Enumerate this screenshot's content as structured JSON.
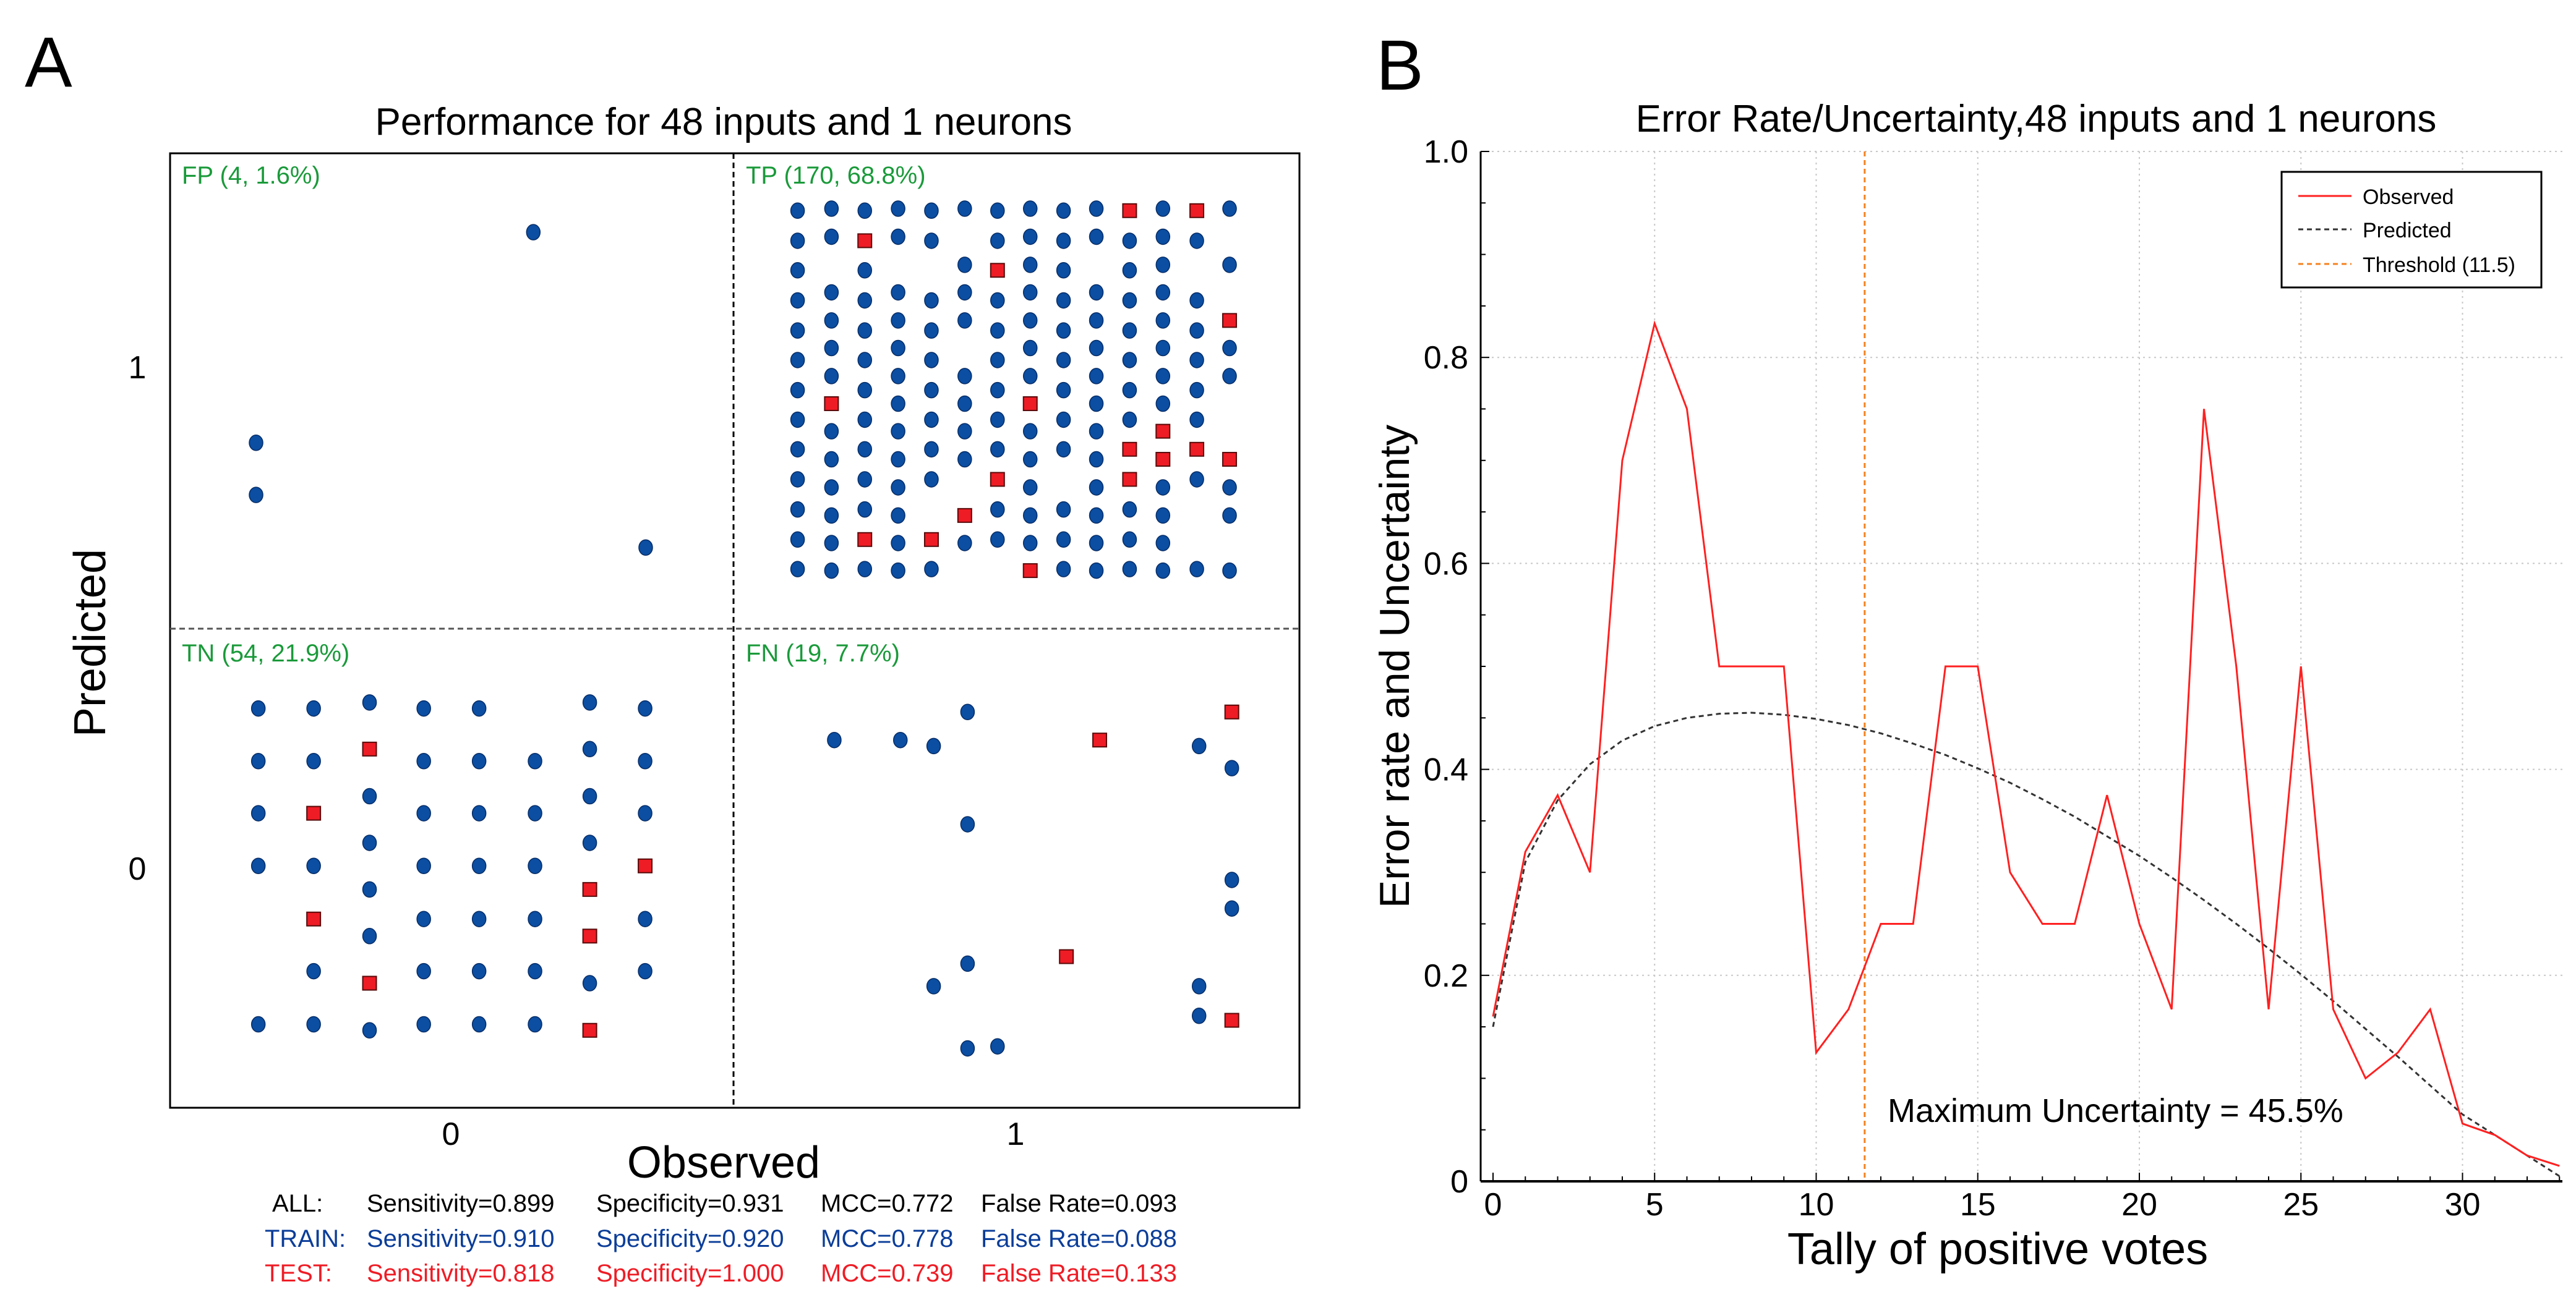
{
  "colors": {
    "train": "#0b4ea2",
    "test": "#ee1c25",
    "quadrant_label": "#1a9a3a",
    "observed": "#ff2020",
    "predicted": "#333333",
    "threshold": "#f58220",
    "train_text": "#0a3d99",
    "test_text": "#ee1c25"
  },
  "chart_data": [
    {
      "type": "scatter",
      "panel_label": "A",
      "title": "Performance for 48 inputs and 1 neurons",
      "xlabel": "Observed",
      "ylabel": "Predicted",
      "xticks": [
        "0",
        "1"
      ],
      "yticks": [
        "1",
        "0"
      ],
      "xlim": [
        -0.5,
        1.5
      ],
      "ylim": [
        -0.48,
        1.43
      ],
      "quadrants": {
        "fp": "FP (4, 1.6%)",
        "tp": "TP (170, 68.8%)",
        "tn": "TN (54, 21.9%)",
        "fn": "FN (19, 7.7%)"
      },
      "fp_points": [
        [
          0.146,
          1.268,
          "train"
        ],
        [
          -0.345,
          0.848,
          "train"
        ],
        [
          -0.345,
          0.744,
          "train"
        ],
        [
          0.345,
          0.639,
          "train"
        ]
      ],
      "tn_points": [
        [
          -0.341,
          0.318,
          "train"
        ],
        [
          -0.341,
          0.213,
          "train"
        ],
        [
          -0.341,
          0.109,
          "train"
        ],
        [
          -0.341,
          0.004,
          "train"
        ],
        [
          -0.341,
          -0.312,
          "train"
        ],
        [
          -0.243,
          0.318,
          "train"
        ],
        [
          -0.243,
          0.213,
          "train"
        ],
        [
          -0.243,
          0.109,
          "test"
        ],
        [
          -0.243,
          0.004,
          "train"
        ],
        [
          -0.243,
          -0.102,
          "test"
        ],
        [
          -0.243,
          -0.206,
          "train"
        ],
        [
          -0.243,
          -0.312,
          "train"
        ],
        [
          -0.144,
          0.33,
          "train"
        ],
        [
          -0.144,
          0.237,
          "test"
        ],
        [
          -0.144,
          0.143,
          "train"
        ],
        [
          -0.144,
          0.05,
          "train"
        ],
        [
          -0.144,
          -0.043,
          "train"
        ],
        [
          -0.144,
          -0.136,
          "train"
        ],
        [
          -0.144,
          -0.23,
          "test"
        ],
        [
          -0.144,
          -0.324,
          "train"
        ],
        [
          -0.048,
          0.318,
          "train"
        ],
        [
          -0.048,
          0.213,
          "train"
        ],
        [
          -0.048,
          0.109,
          "train"
        ],
        [
          -0.048,
          0.004,
          "train"
        ],
        [
          -0.048,
          -0.102,
          "train"
        ],
        [
          -0.048,
          -0.206,
          "train"
        ],
        [
          -0.048,
          -0.312,
          "train"
        ],
        [
          0.05,
          0.318,
          "train"
        ],
        [
          0.05,
          0.213,
          "train"
        ],
        [
          0.05,
          0.109,
          "train"
        ],
        [
          0.05,
          0.004,
          "train"
        ],
        [
          0.05,
          -0.102,
          "train"
        ],
        [
          0.05,
          -0.206,
          "train"
        ],
        [
          0.05,
          -0.312,
          "train"
        ],
        [
          0.149,
          0.213,
          "train"
        ],
        [
          0.149,
          0.109,
          "train"
        ],
        [
          0.149,
          0.004,
          "train"
        ],
        [
          0.149,
          -0.102,
          "train"
        ],
        [
          0.149,
          -0.206,
          "train"
        ],
        [
          0.149,
          -0.312,
          "train"
        ],
        [
          0.246,
          0.33,
          "train"
        ],
        [
          0.246,
          0.237,
          "train"
        ],
        [
          0.246,
          0.143,
          "train"
        ],
        [
          0.246,
          0.05,
          "train"
        ],
        [
          0.246,
          -0.043,
          "test"
        ],
        [
          0.246,
          -0.136,
          "test"
        ],
        [
          0.246,
          -0.23,
          "train"
        ],
        [
          0.246,
          -0.324,
          "test"
        ],
        [
          0.344,
          0.318,
          "train"
        ],
        [
          0.344,
          0.213,
          "train"
        ],
        [
          0.344,
          0.109,
          "train"
        ],
        [
          0.344,
          0.004,
          "test"
        ],
        [
          0.344,
          -0.102,
          "train"
        ],
        [
          0.344,
          -0.206,
          "train"
        ]
      ],
      "fn_points": [
        [
          0.915,
          0.311,
          "train"
        ],
        [
          1.383,
          0.311,
          "test"
        ],
        [
          0.679,
          0.255,
          "train"
        ],
        [
          0.796,
          0.255,
          "train"
        ],
        [
          0.855,
          0.243,
          "train"
        ],
        [
          1.149,
          0.255,
          "test"
        ],
        [
          1.325,
          0.243,
          "train"
        ],
        [
          1.383,
          0.199,
          "train"
        ],
        [
          0.915,
          0.087,
          "train"
        ],
        [
          1.383,
          -0.024,
          "train"
        ],
        [
          1.383,
          -0.081,
          "train"
        ],
        [
          1.09,
          -0.177,
          "test"
        ],
        [
          0.915,
          -0.191,
          "train"
        ],
        [
          0.855,
          -0.236,
          "train"
        ],
        [
          1.325,
          -0.236,
          "train"
        ],
        [
          1.325,
          -0.295,
          "train"
        ],
        [
          1.383,
          -0.304,
          "test"
        ],
        [
          0.915,
          -0.36,
          "train"
        ],
        [
          0.968,
          -0.356,
          "train"
        ]
      ],
      "tp_grid": {
        "x": [
          0.614,
          0.674,
          0.733,
          0.792,
          0.851,
          0.91,
          0.968,
          1.026,
          1.085,
          1.143,
          1.202,
          1.261,
          1.321,
          1.379
        ],
        "even_row_y": [
          1.311,
          1.251,
          1.192,
          1.132,
          1.072,
          1.013,
          0.953,
          0.894,
          0.835,
          0.775,
          0.715,
          0.655,
          0.596
        ],
        "odd_row_y": [
          1.315,
          1.259,
          1.203,
          1.148,
          1.092,
          1.037,
          0.981,
          0.926,
          0.871,
          0.815,
          0.759,
          0.703,
          0.648,
          0.593
        ],
        "columns": [
          {
            "rows": [
              0,
              1,
              2,
              3,
              4,
              5,
              6,
              7,
              8,
              9,
              10,
              11,
              12
            ],
            "test": []
          },
          {
            "rows": [
              0,
              1,
              3,
              4,
              5,
              6,
              7,
              8,
              9,
              10,
              11,
              12,
              13
            ],
            "test": [
              7
            ]
          },
          {
            "rows": [
              0,
              1,
              2,
              3,
              4,
              5,
              6,
              7,
              8,
              9,
              10,
              11,
              12
            ],
            "test": [
              1,
              11
            ]
          },
          {
            "rows": [
              0,
              1,
              3,
              4,
              5,
              6,
              7,
              8,
              9,
              10,
              11,
              12,
              13
            ],
            "test": []
          },
          {
            "rows": [
              0,
              1,
              3,
              4,
              5,
              6,
              7,
              8,
              9,
              11,
              12
            ],
            "test": [
              11
            ]
          },
          {
            "rows": [
              0,
              2,
              3,
              4,
              6,
              7,
              8,
              9,
              11,
              12
            ],
            "test": [
              11
            ]
          },
          {
            "rows": [
              0,
              1,
              2,
              3,
              4,
              5,
              6,
              7,
              8,
              9,
              10,
              11
            ],
            "test": [
              2,
              9
            ]
          },
          {
            "rows": [
              0,
              1,
              2,
              3,
              4,
              5,
              6,
              7,
              8,
              9,
              10,
              11,
              12,
              13
            ],
            "test": [
              7,
              13
            ]
          },
          {
            "rows": [
              0,
              1,
              2,
              3,
              4,
              5,
              6,
              7,
              8,
              10,
              11,
              12
            ],
            "test": []
          },
          {
            "rows": [
              0,
              1,
              3,
              4,
              5,
              6,
              7,
              8,
              9,
              10,
              11,
              12,
              13
            ],
            "test": []
          },
          {
            "rows": [
              0,
              1,
              2,
              3,
              4,
              5,
              6,
              7,
              8,
              9,
              10,
              11,
              12
            ],
            "test": [
              0,
              8,
              9
            ]
          },
          {
            "rows": [
              0,
              1,
              2,
              3,
              4,
              5,
              6,
              7,
              8,
              9,
              10,
              11,
              12,
              13
            ],
            "test": [
              8,
              9
            ]
          },
          {
            "rows": [
              0,
              1,
              3,
              4,
              5,
              6,
              7,
              8,
              9,
              12
            ],
            "test": [
              0,
              8
            ]
          },
          {
            "rows": [
              0,
              2,
              4,
              5,
              6,
              9,
              10,
              11,
              13
            ],
            "test": [
              4,
              9
            ]
          }
        ]
      },
      "stats": [
        {
          "label": "ALL:",
          "sensitivity": "Sensitivity=0.899",
          "specificity": "Specificity=0.931",
          "mcc": "MCC=0.772",
          "false_rate": "False Rate=0.093"
        },
        {
          "label": "TRAIN:",
          "sensitivity": "Sensitivity=0.910",
          "specificity": "Specificity=0.920",
          "mcc": "MCC=0.778",
          "false_rate": "False Rate=0.088"
        },
        {
          "label": "TEST:",
          "sensitivity": "Sensitivity=0.818",
          "specificity": "Specificity=1.000",
          "mcc": "MCC=0.739",
          "false_rate": "False Rate=0.133"
        }
      ]
    },
    {
      "type": "line",
      "panel_label": "B",
      "title": "Error Rate/Uncertainty,48 inputs and 1 neurons",
      "xlabel": "Tally of positive votes",
      "ylabel": "Error rate and Uncertainty",
      "xlim": [
        -0.4,
        33
      ],
      "ylim": [
        0,
        1.0
      ],
      "xticks": [
        "0",
        "5",
        "10",
        "15",
        "20",
        "25",
        "30"
      ],
      "yticks": [
        "0",
        "0.2",
        "0.4",
        "0.6",
        "0.8",
        "1.0"
      ],
      "grid": true,
      "legend_position": "top-right",
      "annotation": "Maximum Uncertainty = 45.5%",
      "threshold": {
        "name": "Threshold (11.5)",
        "x": 11.5
      },
      "series": [
        {
          "name": "Observed",
          "x": [
            0,
            1,
            2,
            3,
            4,
            5,
            6,
            7,
            8,
            9,
            10,
            11,
            12,
            13,
            14,
            15,
            16,
            17,
            18,
            19,
            20,
            21,
            22,
            23,
            24,
            25,
            26,
            27,
            28,
            29,
            30,
            31,
            32,
            33
          ],
          "y": [
            0.16,
            0.32,
            0.375,
            0.3,
            0.7,
            0.833,
            0.75,
            0.5,
            0.5,
            0.5,
            0.125,
            0.167,
            0.25,
            0.25,
            0.5,
            0.5,
            0.3,
            0.25,
            0.25,
            0.375,
            0.25,
            0.167,
            0.75,
            0.5,
            0.167,
            0.5,
            0.167,
            0.1,
            0.125,
            0.167,
            0.056,
            0.045,
            0.025,
            0.015
          ]
        },
        {
          "name": "Predicted",
          "x": [
            0,
            1,
            2,
            3,
            4,
            5,
            6,
            7,
            8,
            9,
            10,
            11,
            12,
            13,
            14,
            15,
            16,
            17,
            18,
            19,
            20,
            21,
            22,
            23,
            24,
            25,
            26,
            27,
            28,
            29,
            30,
            31,
            32,
            33
          ],
          "y": [
            0.15,
            0.31,
            0.37,
            0.405,
            0.428,
            0.442,
            0.45,
            0.454,
            0.455,
            0.453,
            0.449,
            0.443,
            0.435,
            0.425,
            0.414,
            0.401,
            0.387,
            0.371,
            0.354,
            0.335,
            0.316,
            0.295,
            0.273,
            0.25,
            0.226,
            0.201,
            0.175,
            0.148,
            0.121,
            0.093,
            0.065,
            0.045,
            0.025,
            0.005
          ]
        }
      ]
    }
  ]
}
